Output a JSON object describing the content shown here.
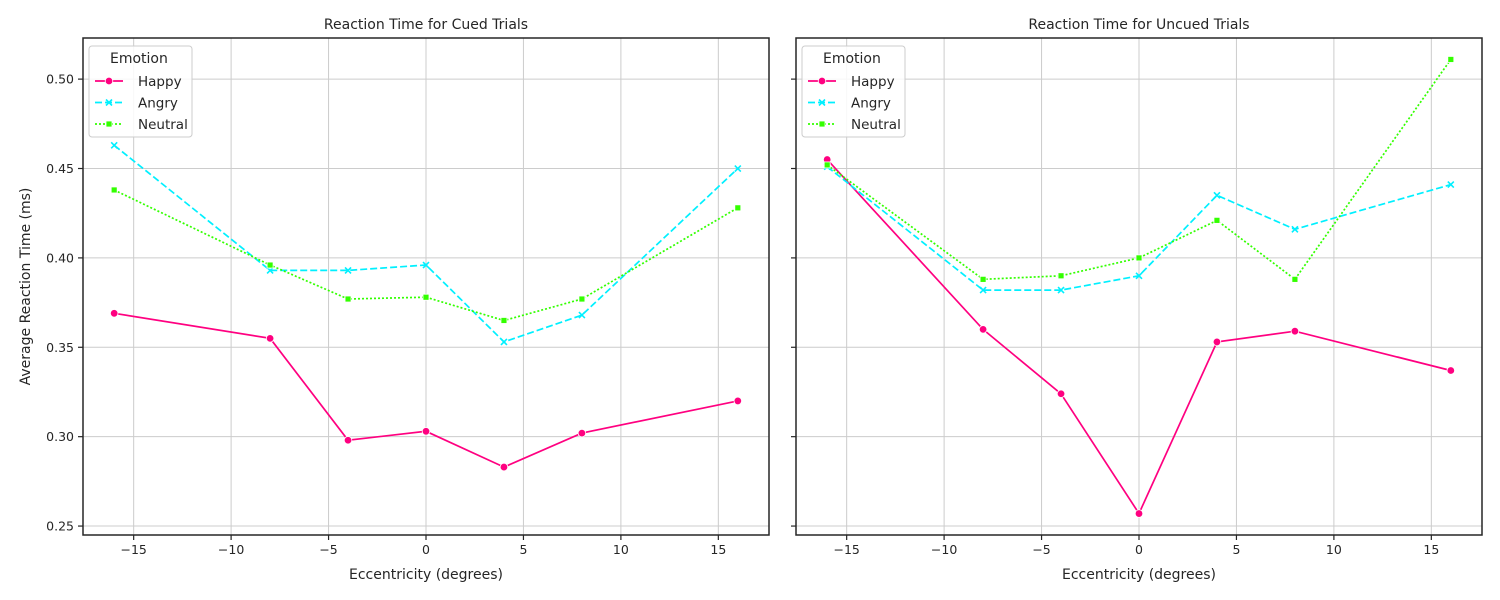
{
  "chart_data": [
    {
      "type": "line",
      "title": "Reaction Time for Cued Trials",
      "xlabel": "Eccentricity (degrees)",
      "ylabel": "Average Reaction Time (ms)",
      "x": [
        -16,
        -8,
        -4,
        0,
        4,
        8,
        16
      ],
      "xlim": [
        -17.6,
        17.6
      ],
      "ylim": [
        0.245,
        0.523
      ],
      "xticks": [
        -15,
        -10,
        -5,
        0,
        5,
        10,
        15
      ],
      "xtick_labels": [
        "−15",
        "−10",
        "−5",
        "0",
        "5",
        "10",
        "15"
      ],
      "yticks": [
        0.25,
        0.3,
        0.35,
        0.4,
        0.45,
        0.5
      ],
      "ytick_labels": [
        "0.25",
        "0.30",
        "0.35",
        "0.40",
        "0.45",
        "0.50"
      ],
      "grid": true,
      "legend": {
        "title": "Emotion",
        "position": "top-left"
      },
      "series": [
        {
          "name": "Happy",
          "values": [
            0.369,
            0.355,
            0.298,
            0.303,
            0.283,
            0.302,
            0.32
          ]
        },
        {
          "name": "Angry",
          "values": [
            0.463,
            0.393,
            0.393,
            0.396,
            0.353,
            0.368,
            0.45
          ]
        },
        {
          "name": "Neutral",
          "values": [
            0.438,
            0.396,
            0.377,
            0.378,
            0.365,
            0.377,
            0.428
          ]
        }
      ]
    },
    {
      "type": "line",
      "title": "Reaction Time for Uncued Trials",
      "xlabel": "Eccentricity (degrees)",
      "ylabel": "",
      "x": [
        -16,
        -8,
        -4,
        0,
        4,
        8,
        16
      ],
      "xlim": [
        -17.6,
        17.6
      ],
      "ylim": [
        0.245,
        0.523
      ],
      "xticks": [
        -15,
        -10,
        -5,
        0,
        5,
        10,
        15
      ],
      "xtick_labels": [
        "−15",
        "−10",
        "−5",
        "0",
        "5",
        "10",
        "15"
      ],
      "yticks": [
        0.25,
        0.3,
        0.35,
        0.4,
        0.45,
        0.5
      ],
      "ytick_labels": [],
      "grid": true,
      "legend": {
        "title": "Emotion",
        "position": "top-left"
      },
      "series": [
        {
          "name": "Happy",
          "values": [
            0.455,
            0.36,
            0.324,
            0.257,
            0.353,
            0.359,
            0.337
          ]
        },
        {
          "name": "Angry",
          "values": [
            0.451,
            0.382,
            0.382,
            0.39,
            0.435,
            0.416,
            0.441
          ]
        },
        {
          "name": "Neutral",
          "values": [
            0.452,
            0.388,
            0.39,
            0.4,
            0.421,
            0.388,
            0.511
          ]
        }
      ]
    }
  ],
  "series_style": {
    "Happy": {
      "color": "#ff0080",
      "dash": "solid",
      "marker": "circle"
    },
    "Angry": {
      "color": "#00f0ff",
      "dash": "dashed",
      "marker": "x"
    },
    "Neutral": {
      "color": "#33ff00",
      "dash": "dotted",
      "marker": "square"
    }
  },
  "colors": {
    "grid": "#cccccc",
    "axes": "#262626",
    "text": "#262626"
  }
}
